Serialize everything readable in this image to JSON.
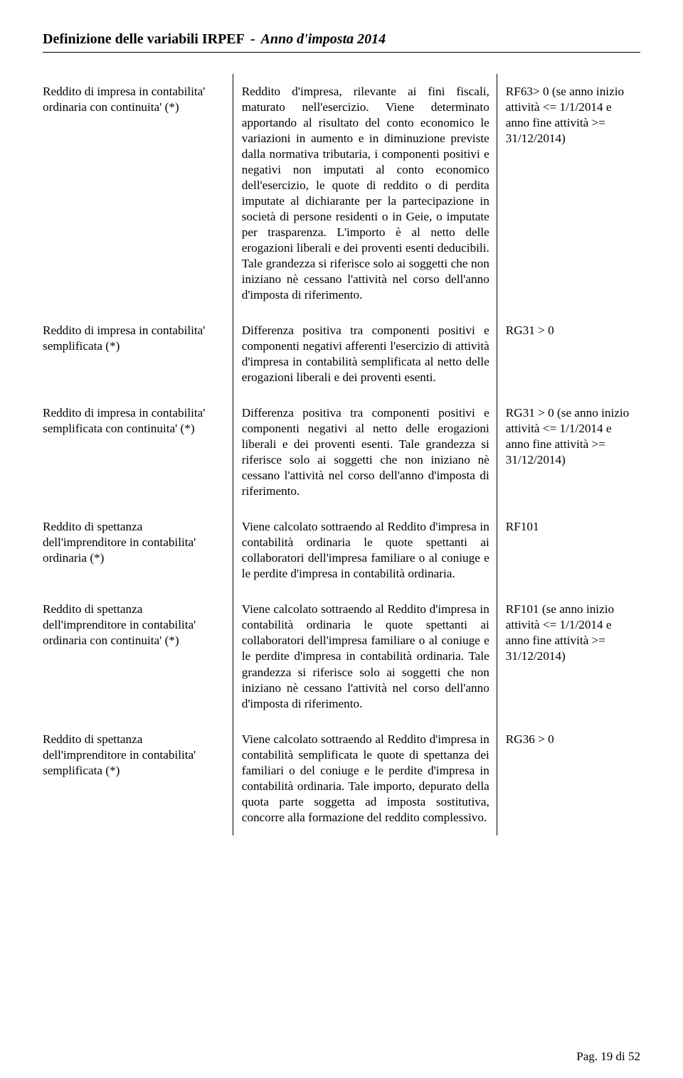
{
  "header": {
    "left": "Definizione delle variabili IRPEF",
    "spacer": " - ",
    "right": "Anno d'imposta 2014"
  },
  "rows": [
    {
      "c1": "Reddito di impresa in contabilita' ordinaria con continuita' (*)",
      "c2": "Reddito d'impresa, rilevante ai fini fiscali, maturato nell'esercizio. Viene determinato apportando al risultato del conto economico le variazioni in aumento e in diminuzione previste dalla normativa tributaria, i componenti positivi e negativi non imputati al conto economico dell'esercizio, le quote di reddito o di perdita imputate al dichiarante per la partecipazione in società di persone residenti o in Geie, o imputate per trasparenza. L'importo è al netto delle erogazioni liberali e dei proventi esenti deducibili. Tale grandezza si riferisce solo ai soggetti che non iniziano nè cessano l'attività nel corso dell'anno d'imposta di riferimento.",
      "c3": "RF63> 0 (se anno inizio attività <= 1/1/2014 e anno fine attività >= 31/12/2014)"
    },
    {
      "c1": "Reddito di impresa in contabilita' semplificata (*)",
      "c2": "Differenza positiva tra componenti positivi e componenti negativi afferenti l'esercizio di attività d'impresa in contabilità semplificata al netto delle erogazioni liberali e dei proventi esenti.",
      "c3": "RG31 > 0"
    },
    {
      "c1": "Reddito di impresa in contabilita' semplificata con continuita' (*)",
      "c2": "Differenza positiva tra componenti positivi e componenti negativi al netto delle erogazioni liberali e dei proventi esenti. Tale grandezza si riferisce solo ai soggetti che non iniziano nè cessano l'attività nel corso dell'anno d'imposta di riferimento.",
      "c3": "RG31 > 0 (se anno inizio attività <= 1/1/2014 e anno fine attività >= 31/12/2014)"
    },
    {
      "c1": "Reddito di spettanza dell'imprenditore in contabilita' ordinaria (*)",
      "c2": "Viene calcolato sottraendo al Reddito d'impresa in contabilità ordinaria le quote spettanti ai collaboratori dell'impresa familiare o al coniuge e le perdite d'impresa in contabilità ordinaria.",
      "c3": "RF101"
    },
    {
      "c1": "Reddito di spettanza dell'imprenditore in contabilita' ordinaria con continuita' (*)",
      "c2": "Viene calcolato sottraendo al Reddito d'impresa in contabilità ordinaria le quote spettanti ai collaboratori dell'impresa familiare o al coniuge e le perdite d'impresa in contabilità ordinaria. Tale grandezza si riferisce solo ai soggetti che non iniziano nè cessano l'attività nel corso dell'anno d'imposta di riferimento.",
      "c3": "RF101 (se anno inizio attività <= 1/1/2014 e anno fine attività >= 31/12/2014)"
    },
    {
      "c1": "Reddito di spettanza dell'imprenditore in contabilita' semplificata (*)",
      "c2": "Viene calcolato sottraendo al Reddito d'impresa in contabilità semplificata le quote di spettanza dei familiari o del coniuge e le perdite d'impresa in contabilità ordinaria. Tale importo, depurato della quota parte soggetta ad imposta sostitutiva, concorre alla formazione del reddito complessivo.",
      "c3": "RG36  > 0"
    }
  ],
  "footer": {
    "label": "Pag. 19 di 52"
  }
}
